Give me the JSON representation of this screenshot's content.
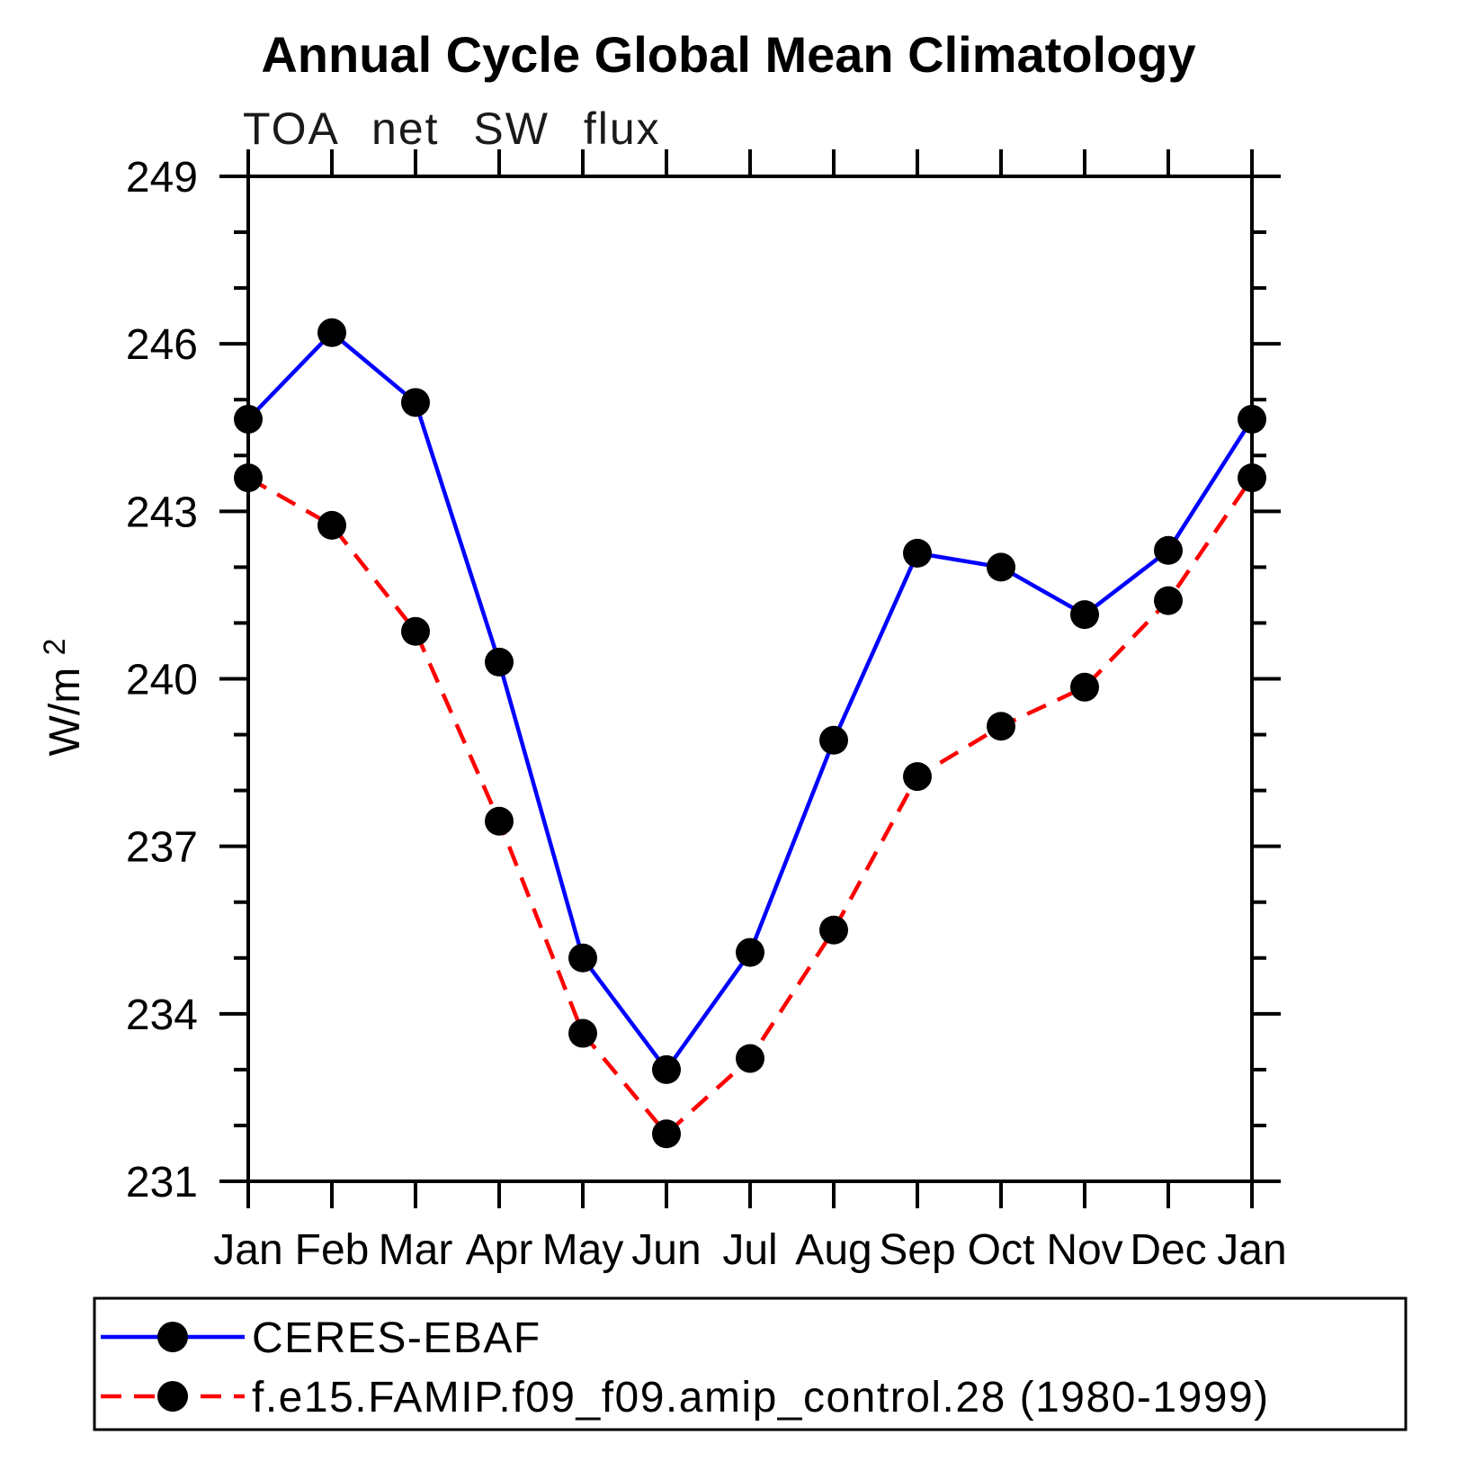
{
  "title": "Annual Cycle Global Mean Climatology",
  "subtitle": "TOA net SW flux",
  "y_axis": {
    "label_base": "W/m",
    "label_exponent": "2",
    "label_text": "W/m²"
  },
  "chart_data": {
    "type": "line",
    "x_categories": [
      "Jan",
      "Feb",
      "Mar",
      "Apr",
      "May",
      "Jun",
      "Jul",
      "Aug",
      "Sep",
      "Oct",
      "Nov",
      "Dec",
      "Jan"
    ],
    "series": [
      {
        "name": "CERES-EBAF",
        "color": "#0000ff",
        "line_style": "solid",
        "marker": "filled-circle",
        "marker_color": "#000000",
        "values": [
          244.65,
          246.2,
          244.95,
          240.3,
          235.0,
          233.0,
          235.1,
          238.9,
          242.25,
          242.0,
          241.15,
          242.3,
          244.65
        ]
      },
      {
        "name": "f.e15.FAMIP.f09_f09.amip_control.28 (1980-1999)",
        "color": "#ff0000",
        "line_style": "dashed",
        "marker": "filled-circle",
        "marker_color": "#000000",
        "values": [
          243.6,
          242.75,
          240.85,
          237.45,
          233.65,
          231.85,
          233.2,
          235.5,
          238.25,
          239.15,
          239.85,
          241.4,
          243.6
        ]
      }
    ],
    "ylim": [
      231,
      249
    ],
    "y_major_ticks": [
      231,
      234,
      237,
      240,
      243,
      246,
      249
    ],
    "y_minor_step": 1,
    "ylabel": "W/m²",
    "xlabel": "",
    "grid": false,
    "legend_position": "bottom",
    "frame": "box-with-outward-ticks"
  }
}
